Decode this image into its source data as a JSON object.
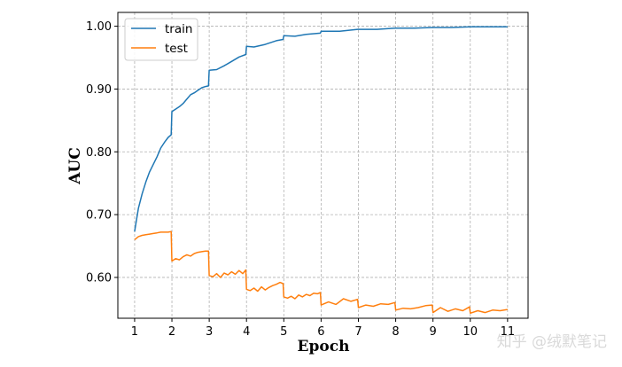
{
  "chart_data": {
    "type": "line",
    "title": "",
    "xlabel": "Epoch",
    "ylabel": "AUC",
    "xlim": [
      0.55,
      11.55
    ],
    "ylim": [
      0.535,
      1.022
    ],
    "xticks": [
      "1",
      "2",
      "3",
      "4",
      "5",
      "6",
      "7",
      "8",
      "9",
      "10",
      "11"
    ],
    "yticks": [
      "0.60",
      "0.70",
      "0.80",
      "0.90",
      "1.00"
    ],
    "grid": true,
    "legend_position": "top-left",
    "colors": {
      "train": "#1f77b4",
      "test": "#ff7f0e"
    },
    "series": [
      {
        "name": "train",
        "x": [
          1.0,
          1.1,
          1.2,
          1.3,
          1.4,
          1.5,
          1.6,
          1.7,
          1.8,
          1.9,
          1.98,
          2.0,
          2.1,
          2.2,
          2.3,
          2.4,
          2.5,
          2.6,
          2.7,
          2.8,
          2.9,
          2.98,
          3.0,
          3.2,
          3.4,
          3.6,
          3.8,
          3.98,
          4.0,
          4.2,
          4.5,
          4.8,
          4.98,
          5.0,
          5.3,
          5.6,
          5.98,
          6.0,
          6.5,
          6.98,
          7.0,
          7.5,
          7.98,
          8.0,
          8.5,
          9.0,
          9.5,
          10.0,
          10.5,
          11.0
        ],
        "y": [
          0.673,
          0.71,
          0.733,
          0.752,
          0.768,
          0.78,
          0.792,
          0.806,
          0.815,
          0.823,
          0.827,
          0.864,
          0.868,
          0.872,
          0.877,
          0.884,
          0.891,
          0.894,
          0.898,
          0.902,
          0.904,
          0.905,
          0.93,
          0.931,
          0.937,
          0.944,
          0.951,
          0.955,
          0.968,
          0.967,
          0.971,
          0.977,
          0.979,
          0.985,
          0.984,
          0.987,
          0.989,
          0.992,
          0.992,
          0.995,
          0.995,
          0.995,
          0.997,
          0.997,
          0.997,
          0.998,
          0.998,
          0.999,
          0.999,
          0.999
        ]
      },
      {
        "name": "test",
        "x": [
          1.0,
          1.1,
          1.2,
          1.3,
          1.4,
          1.5,
          1.6,
          1.7,
          1.8,
          1.9,
          1.98,
          2.0,
          2.1,
          2.2,
          2.3,
          2.4,
          2.5,
          2.6,
          2.7,
          2.8,
          2.9,
          2.98,
          3.0,
          3.1,
          3.2,
          3.3,
          3.4,
          3.5,
          3.6,
          3.7,
          3.8,
          3.9,
          3.98,
          4.0,
          4.1,
          4.2,
          4.3,
          4.4,
          4.5,
          4.6,
          4.7,
          4.8,
          4.9,
          4.98,
          5.0,
          5.1,
          5.2,
          5.3,
          5.4,
          5.5,
          5.6,
          5.7,
          5.8,
          5.9,
          5.98,
          6.0,
          6.2,
          6.4,
          6.6,
          6.8,
          6.98,
          7.0,
          7.2,
          7.4,
          7.6,
          7.8,
          7.98,
          8.0,
          8.2,
          8.4,
          8.6,
          8.8,
          8.98,
          9.0,
          9.2,
          9.4,
          9.6,
          9.8,
          9.98,
          10.0,
          10.2,
          10.4,
          10.6,
          10.8,
          11.0
        ],
        "y": [
          0.66,
          0.665,
          0.667,
          0.668,
          0.669,
          0.67,
          0.671,
          0.672,
          0.672,
          0.672,
          0.673,
          0.626,
          0.63,
          0.628,
          0.633,
          0.636,
          0.634,
          0.638,
          0.64,
          0.641,
          0.642,
          0.642,
          0.603,
          0.601,
          0.606,
          0.6,
          0.607,
          0.604,
          0.609,
          0.605,
          0.611,
          0.606,
          0.612,
          0.581,
          0.579,
          0.583,
          0.578,
          0.585,
          0.58,
          0.584,
          0.587,
          0.589,
          0.592,
          0.59,
          0.569,
          0.567,
          0.57,
          0.566,
          0.572,
          0.569,
          0.573,
          0.571,
          0.575,
          0.574,
          0.576,
          0.556,
          0.561,
          0.557,
          0.566,
          0.562,
          0.565,
          0.552,
          0.556,
          0.554,
          0.558,
          0.557,
          0.56,
          0.548,
          0.551,
          0.55,
          0.552,
          0.555,
          0.556,
          0.544,
          0.552,
          0.546,
          0.55,
          0.547,
          0.553,
          0.543,
          0.547,
          0.544,
          0.548,
          0.547,
          0.549
        ]
      }
    ]
  },
  "watermark": "知乎 @绒默笔记"
}
